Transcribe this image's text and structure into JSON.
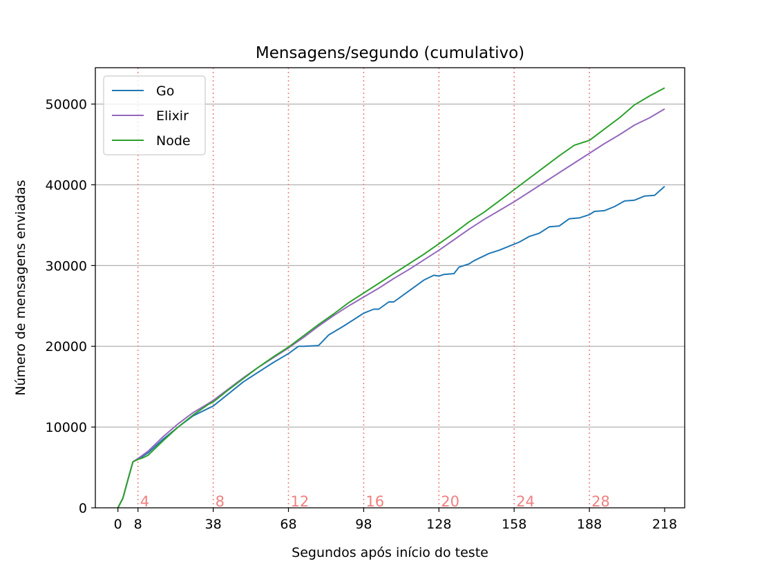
{
  "chart_data": {
    "type": "line",
    "title": "Mensagens/segundo (cumulativo)",
    "xlabel": "Segundos após início do teste",
    "ylabel": "Número de mensagens enviadas",
    "xlim": [
      -9,
      226
    ],
    "ylim": [
      0,
      54500
    ],
    "xticks": [
      0,
      8,
      38,
      68,
      98,
      128,
      158,
      188,
      218
    ],
    "yticks": [
      0,
      10000,
      20000,
      30000,
      40000,
      50000
    ],
    "grid": "horizontal",
    "legend_position": "top-left",
    "markers": {
      "color": "#f08080",
      "items": [
        {
          "x": 8,
          "label": "4"
        },
        {
          "x": 38,
          "label": "8"
        },
        {
          "x": 68,
          "label": "12"
        },
        {
          "x": 98,
          "label": "16"
        },
        {
          "x": 128,
          "label": "20"
        },
        {
          "x": 158,
          "label": "24"
        },
        {
          "x": 188,
          "label": "28"
        }
      ]
    },
    "series": [
      {
        "name": "Go",
        "color": "#1f77b4",
        "x": [
          0,
          2,
          4,
          6,
          8,
          12,
          18,
          24,
          30,
          36,
          38,
          44,
          50,
          56,
          62,
          68,
          72,
          74,
          80,
          84,
          90,
          96,
          98,
          102,
          104,
          108,
          110,
          114,
          118,
          122,
          126,
          128,
          130,
          134,
          136,
          140,
          142,
          148,
          152,
          156,
          160,
          164,
          168,
          172,
          176,
          180,
          184,
          188,
          190,
          194,
          198,
          202,
          206,
          210,
          214,
          218
        ],
        "y": [
          0,
          1200,
          3500,
          5700,
          6000,
          6800,
          8500,
          10000,
          11400,
          12300,
          12600,
          14100,
          15600,
          16800,
          18000,
          19100,
          20000,
          20000,
          20100,
          21400,
          22500,
          23700,
          24100,
          24600,
          24600,
          25500,
          25500,
          26400,
          27300,
          28200,
          28800,
          28700,
          28900,
          29000,
          29800,
          30200,
          30600,
          31500,
          31900,
          32400,
          32900,
          33600,
          34000,
          34800,
          34900,
          35800,
          35900,
          36300,
          36700,
          36800,
          37300,
          38000,
          38100,
          38600,
          38700,
          39800
        ]
      },
      {
        "name": "Elixir",
        "color": "#9467bd",
        "x": [
          0,
          2,
          4,
          6,
          8,
          12,
          18,
          24,
          30,
          36,
          38,
          44,
          50,
          56,
          62,
          68,
          74,
          80,
          86,
          92,
          98,
          104,
          110,
          116,
          122,
          128,
          134,
          140,
          146,
          152,
          158,
          164,
          170,
          176,
          182,
          188,
          194,
          200,
          206,
          212,
          218
        ],
        "y": [
          0,
          1200,
          3500,
          5700,
          6100,
          7000,
          8800,
          10400,
          11800,
          12900,
          13300,
          14700,
          16100,
          17400,
          18600,
          19800,
          21100,
          22500,
          23800,
          25000,
          26100,
          27200,
          28400,
          29500,
          30700,
          31900,
          33200,
          34500,
          35700,
          36800,
          37900,
          39100,
          40300,
          41500,
          42700,
          43900,
          45100,
          46200,
          47400,
          48300,
          49400
        ]
      },
      {
        "name": "Node",
        "color": "#2ca02c",
        "x": [
          0,
          2,
          4,
          6,
          8,
          10,
          12,
          18,
          24,
          30,
          36,
          38,
          44,
          50,
          56,
          62,
          68,
          74,
          80,
          86,
          92,
          98,
          104,
          110,
          116,
          122,
          128,
          134,
          140,
          146,
          152,
          158,
          164,
          170,
          176,
          182,
          186,
          188,
          194,
          200,
          206,
          212,
          218
        ],
        "y": [
          0,
          1200,
          3500,
          5700,
          6000,
          6200,
          6500,
          8300,
          10000,
          11500,
          12800,
          13100,
          14600,
          16000,
          17400,
          18700,
          19900,
          21300,
          22700,
          24000,
          25400,
          26600,
          27800,
          29000,
          30200,
          31400,
          32700,
          34000,
          35400,
          36600,
          38000,
          39400,
          40800,
          42200,
          43600,
          44900,
          45300,
          45500,
          46900,
          48300,
          49900,
          51000,
          52000
        ]
      }
    ]
  }
}
